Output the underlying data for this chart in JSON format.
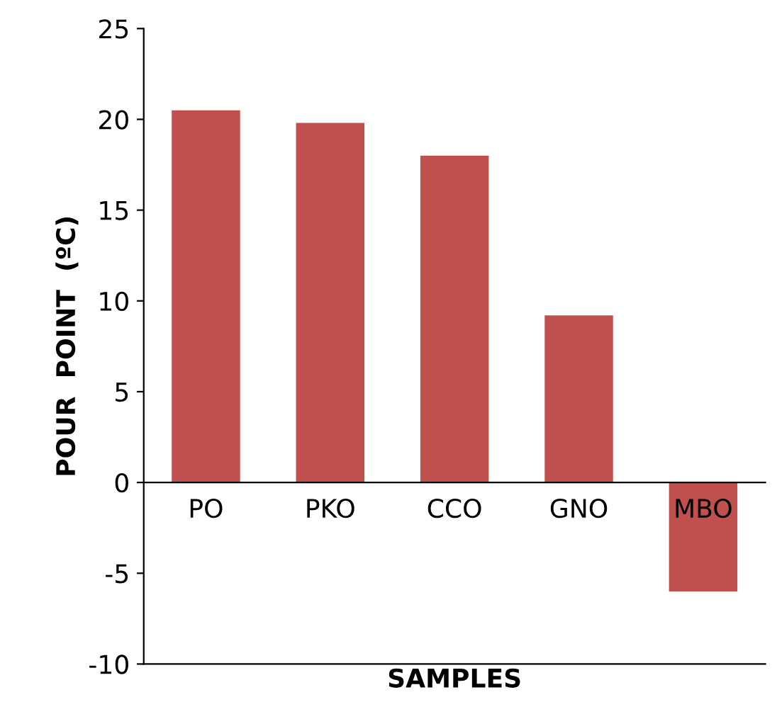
{
  "chart_data": {
    "type": "bar",
    "xlabel": "SAMPLES",
    "ylabel": "POUR  POINT  (ºC)",
    "categories": [
      "PO",
      "PKO",
      "CCO",
      "GNO",
      "MBO"
    ],
    "values": [
      20.5,
      19.8,
      18.0,
      9.2,
      -6.0
    ],
    "color": "#c0504d",
    "ylim": [
      -10,
      25
    ],
    "yticks": [
      -10,
      -5,
      0,
      5,
      10,
      15,
      20,
      25
    ],
    "grid": false,
    "legend": false
  }
}
